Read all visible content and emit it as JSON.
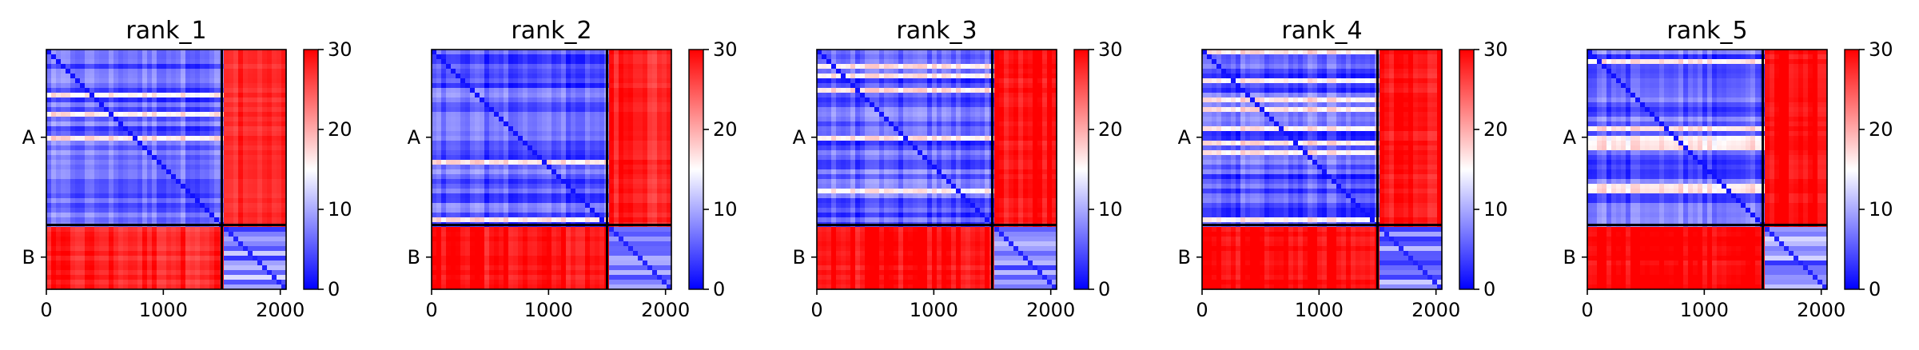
{
  "figure": {
    "background": "#ffffff"
  },
  "colormap": {
    "name": "bwr",
    "low": "#0000ff",
    "mid": "#ffffff",
    "high": "#ff0000"
  },
  "chart_data": [
    {
      "type": "heatmap",
      "title": "rank_1",
      "xlim": [
        0,
        2050
      ],
      "x_ticks": [
        0,
        1000,
        2000
      ],
      "x_tick_labels": [
        "0",
        "1000",
        "2000"
      ],
      "y_tick_labels": [
        "A",
        "B"
      ],
      "chains": [
        {
          "name": "A",
          "start": 0,
          "end": 1500
        },
        {
          "name": "B",
          "start": 1500,
          "end": 2050
        }
      ],
      "colorbar": {
        "min": 0,
        "max": 30,
        "ticks": [
          0,
          10,
          20,
          30
        ]
      },
      "block_levels": {
        "A-A": 6,
        "A-B": 27,
        "B-A": 28,
        "B-B": 8
      },
      "grid": false
    },
    {
      "type": "heatmap",
      "title": "rank_2",
      "xlim": [
        0,
        2050
      ],
      "x_ticks": [
        0,
        1000,
        2000
      ],
      "x_tick_labels": [
        "0",
        "1000",
        "2000"
      ],
      "y_tick_labels": [
        "A",
        "B"
      ],
      "chains": [
        {
          "name": "A",
          "start": 0,
          "end": 1500
        },
        {
          "name": "B",
          "start": 1500,
          "end": 2050
        }
      ],
      "colorbar": {
        "min": 0,
        "max": 30,
        "ticks": [
          0,
          10,
          20,
          30
        ]
      },
      "block_levels": {
        "A-A": 6,
        "A-B": 28,
        "B-A": 29,
        "B-B": 8
      },
      "grid": false
    },
    {
      "type": "heatmap",
      "title": "rank_3",
      "xlim": [
        0,
        2050
      ],
      "x_ticks": [
        0,
        1000,
        2000
      ],
      "x_tick_labels": [
        "0",
        "1000",
        "2000"
      ],
      "y_tick_labels": [
        "A",
        "B"
      ],
      "chains": [
        {
          "name": "A",
          "start": 0,
          "end": 1500
        },
        {
          "name": "B",
          "start": 1500,
          "end": 2050
        }
      ],
      "colorbar": {
        "min": 0,
        "max": 30,
        "ticks": [
          0,
          10,
          20,
          30
        ]
      },
      "block_levels": {
        "A-A": 6,
        "A-B": 29,
        "B-A": 29,
        "B-B": 8
      },
      "grid": false
    },
    {
      "type": "heatmap",
      "title": "rank_4",
      "xlim": [
        0,
        2050
      ],
      "x_ticks": [
        0,
        1000,
        2000
      ],
      "x_tick_labels": [
        "0",
        "1000",
        "2000"
      ],
      "y_tick_labels": [
        "A",
        "B"
      ],
      "chains": [
        {
          "name": "A",
          "start": 0,
          "end": 1500
        },
        {
          "name": "B",
          "start": 1500,
          "end": 2050
        }
      ],
      "colorbar": {
        "min": 0,
        "max": 30,
        "ticks": [
          0,
          10,
          20,
          30
        ]
      },
      "block_levels": {
        "A-A": 6,
        "A-B": 29,
        "B-A": 30,
        "B-B": 8
      },
      "grid": false
    },
    {
      "type": "heatmap",
      "title": "rank_5",
      "xlim": [
        0,
        2050
      ],
      "x_ticks": [
        0,
        1000,
        2000
      ],
      "x_tick_labels": [
        "0",
        "1000",
        "2000"
      ],
      "y_tick_labels": [
        "A",
        "B"
      ],
      "chains": [
        {
          "name": "A",
          "start": 0,
          "end": 1500
        },
        {
          "name": "B",
          "start": 1500,
          "end": 2050
        }
      ],
      "colorbar": {
        "min": 0,
        "max": 30,
        "ticks": [
          0,
          10,
          20,
          30
        ]
      },
      "block_levels": {
        "A-A": 6,
        "A-B": 30,
        "B-A": 30,
        "B-B": 8
      },
      "grid": false
    }
  ]
}
